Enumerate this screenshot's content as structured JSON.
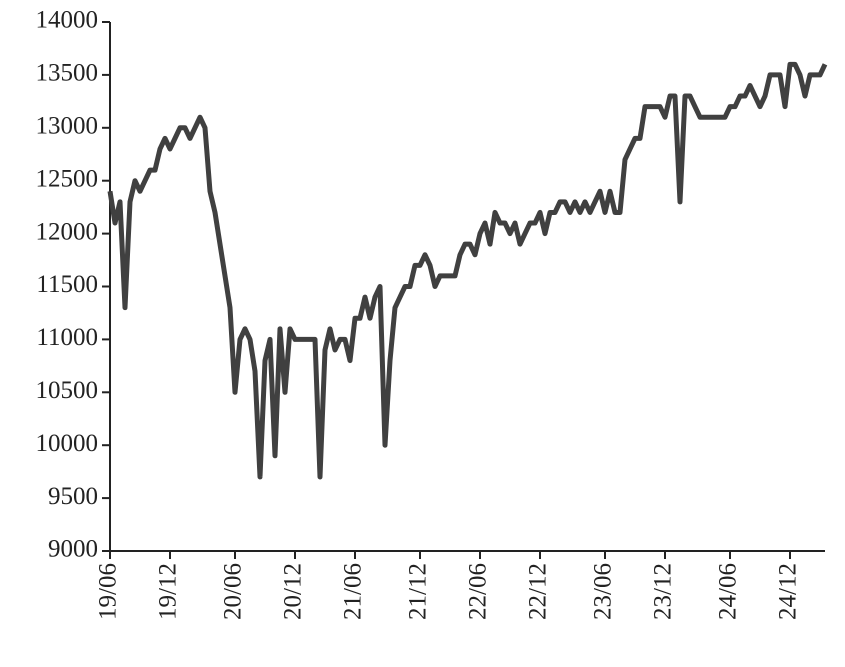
{
  "chart_data": {
    "type": "line",
    "color": "#404040",
    "categories": [
      "19/06",
      null,
      null,
      null,
      null,
      null,
      null,
      null,
      null,
      null,
      null,
      null,
      "19/12",
      null,
      null,
      null,
      null,
      null,
      null,
      null,
      null,
      null,
      null,
      null,
      null,
      "20/06",
      null,
      null,
      null,
      null,
      null,
      null,
      null,
      null,
      null,
      null,
      null,
      "20/12",
      null,
      null,
      null,
      null,
      null,
      null,
      null,
      null,
      null,
      null,
      null,
      "21/06",
      null,
      null,
      null,
      null,
      null,
      null,
      null,
      null,
      null,
      null,
      null,
      null,
      "21/12",
      null,
      null,
      null,
      null,
      null,
      null,
      null,
      null,
      null,
      null,
      null,
      "22/06",
      null,
      null,
      null,
      null,
      null,
      null,
      null,
      null,
      null,
      null,
      null,
      "22/12",
      null,
      null,
      null,
      null,
      null,
      null,
      null,
      null,
      null,
      null,
      null,
      null,
      "23/06",
      null,
      null,
      null,
      null,
      null,
      null,
      null,
      null,
      null,
      null,
      null,
      "23/12",
      null,
      null,
      null,
      null,
      null,
      null,
      null,
      null,
      null,
      null,
      null,
      null,
      "24/06",
      null,
      null,
      null,
      null,
      null,
      null,
      null,
      null,
      null,
      null,
      null,
      "24/12",
      null,
      null,
      null,
      null,
      null,
      null,
      null
    ],
    "values": [
      12400,
      12100,
      12300,
      11300,
      12300,
      12500,
      12400,
      12500,
      12600,
      12600,
      12800,
      12900,
      12800,
      12900,
      13000,
      13000,
      12900,
      13000,
      13100,
      13000,
      12400,
      12200,
      11900,
      11600,
      11300,
      10500,
      11000,
      11100,
      11000,
      10700,
      9700,
      10800,
      11000,
      9900,
      11100,
      10500,
      11100,
      11000,
      11000,
      11000,
      11000,
      11000,
      9700,
      10900,
      11100,
      10900,
      11000,
      11000,
      10800,
      11200,
      11200,
      11400,
      11200,
      11400,
      11500,
      10000,
      10800,
      11300,
      11400,
      11500,
      11500,
      11700,
      11700,
      11800,
      11700,
      11500,
      11600,
      11600,
      11600,
      11600,
      11800,
      11900,
      11900,
      11800,
      12000,
      12100,
      11900,
      12200,
      12100,
      12100,
      12000,
      12100,
      11900,
      12000,
      12100,
      12100,
      12200,
      12000,
      12200,
      12200,
      12300,
      12300,
      12200,
      12300,
      12200,
      12300,
      12200,
      12300,
      12400,
      12200,
      12400,
      12200,
      12200,
      12700,
      12800,
      12900,
      12900,
      13200,
      13200,
      13200,
      13200,
      13100,
      13300,
      13300,
      12300,
      13300,
      13300,
      13200,
      13100,
      13100,
      13100,
      13100,
      13100,
      13100,
      13200,
      13200,
      13300,
      13300,
      13400,
      13300,
      13200,
      13300,
      13500,
      13500,
      13500,
      13200,
      13600,
      13600,
      13500,
      13300,
      13500,
      13500,
      13500,
      13600
    ],
    "ylim": [
      9000,
      14000
    ],
    "yticks": [
      9000,
      9500,
      10000,
      10500,
      11000,
      11500,
      12000,
      12500,
      13000,
      13500,
      14000
    ],
    "grid": false
  }
}
